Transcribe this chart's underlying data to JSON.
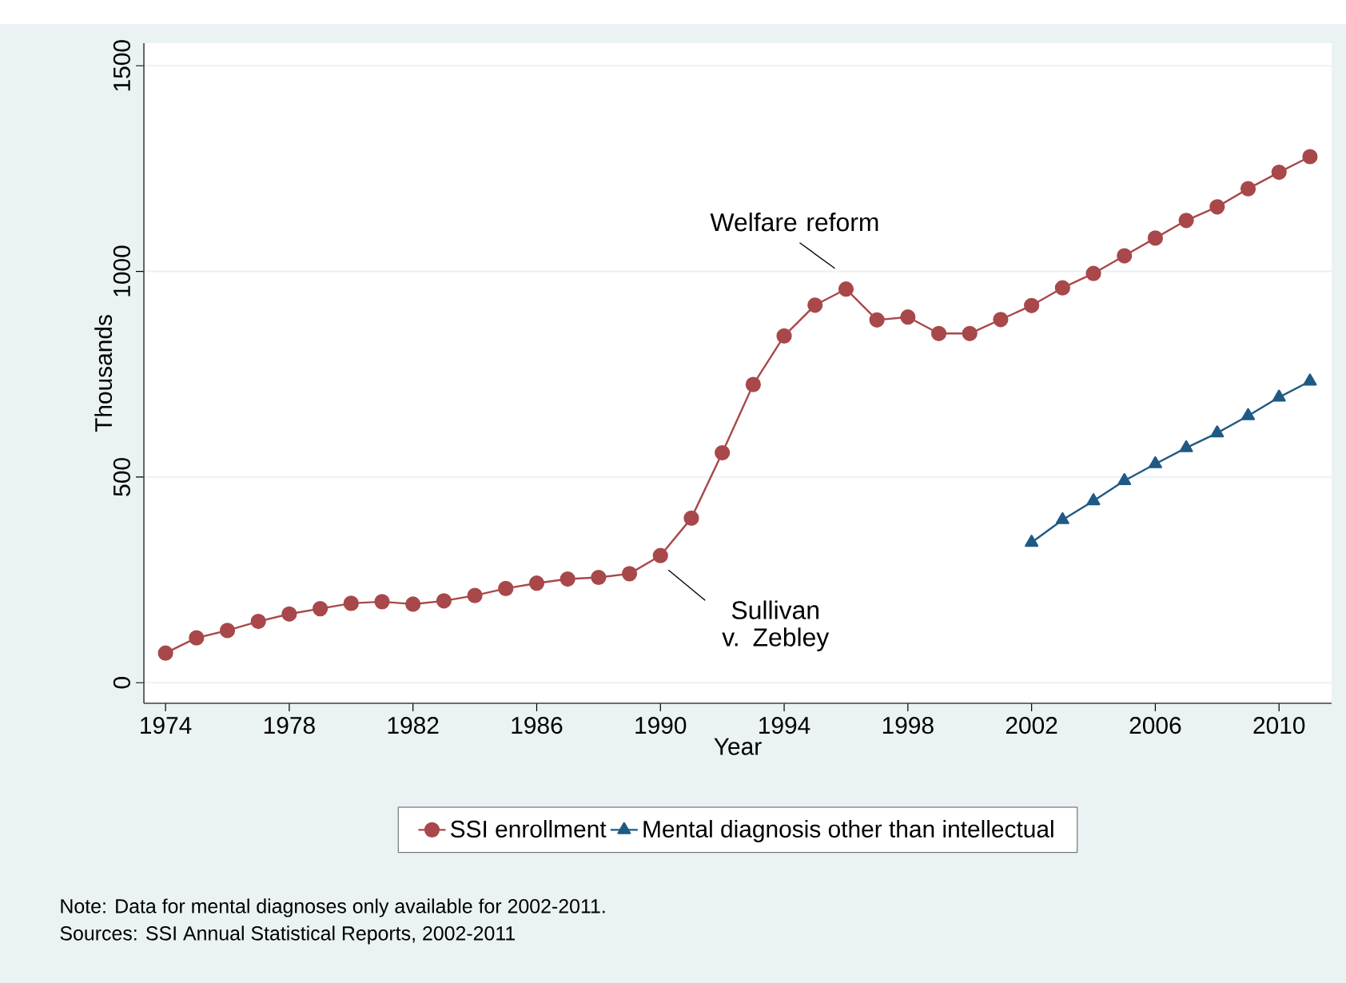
{
  "chart_data": {
    "type": "line",
    "xlabel": "Year",
    "ylabel": "Thousands",
    "xlim": [
      1973.3,
      2011.7
    ],
    "ylim": [
      -50,
      1555
    ],
    "xticks": [
      1974,
      1978,
      1982,
      1986,
      1990,
      1994,
      1998,
      2002,
      2006,
      2010
    ],
    "yticks": [
      0,
      500,
      1000,
      1500
    ],
    "grid": "y",
    "legend": "bottom",
    "series": [
      {
        "name": "SSI enrollment",
        "color": "#a8484b",
        "marker": "circle",
        "x": [
          1974,
          1975,
          1976,
          1977,
          1978,
          1979,
          1980,
          1981,
          1982,
          1983,
          1984,
          1985,
          1986,
          1987,
          1988,
          1989,
          1990,
          1991,
          1992,
          1993,
          1994,
          1995,
          1996,
          1997,
          1998,
          1999,
          2000,
          2001,
          2002,
          2003,
          2004,
          2005,
          2006,
          2007,
          2008,
          2009,
          2010,
          2011
        ],
        "values": [
          72,
          109,
          127,
          149,
          167,
          180,
          193,
          197,
          191,
          199,
          212,
          229,
          242,
          252,
          256,
          265,
          309,
          400,
          559,
          725,
          843,
          918,
          957,
          882,
          889,
          849,
          849,
          883,
          917,
          960,
          995,
          1038,
          1081,
          1124,
          1157,
          1201,
          1241,
          1279
        ]
      },
      {
        "name": "Mental diagnosis other than intellectual",
        "color": "#1f5a85",
        "marker": "triangle",
        "x": [
          2002,
          2003,
          2004,
          2005,
          2006,
          2007,
          2008,
          2009,
          2010,
          2011
        ],
        "values": [
          341,
          396,
          442,
          491,
          532,
          571,
          607,
          649,
          694,
          733
        ]
      }
    ],
    "annotations": [
      {
        "text": "Welfare reform",
        "x": 1996,
        "y": 957
      },
      {
        "text": "Sullivan v. Zebley",
        "x": 1990,
        "y": 309
      },
      "Note: Data for mental diagnoses only available for 2002-2011.",
      "Sources: SSI Annual Statistical Reports, 2002-2011"
    ]
  }
}
